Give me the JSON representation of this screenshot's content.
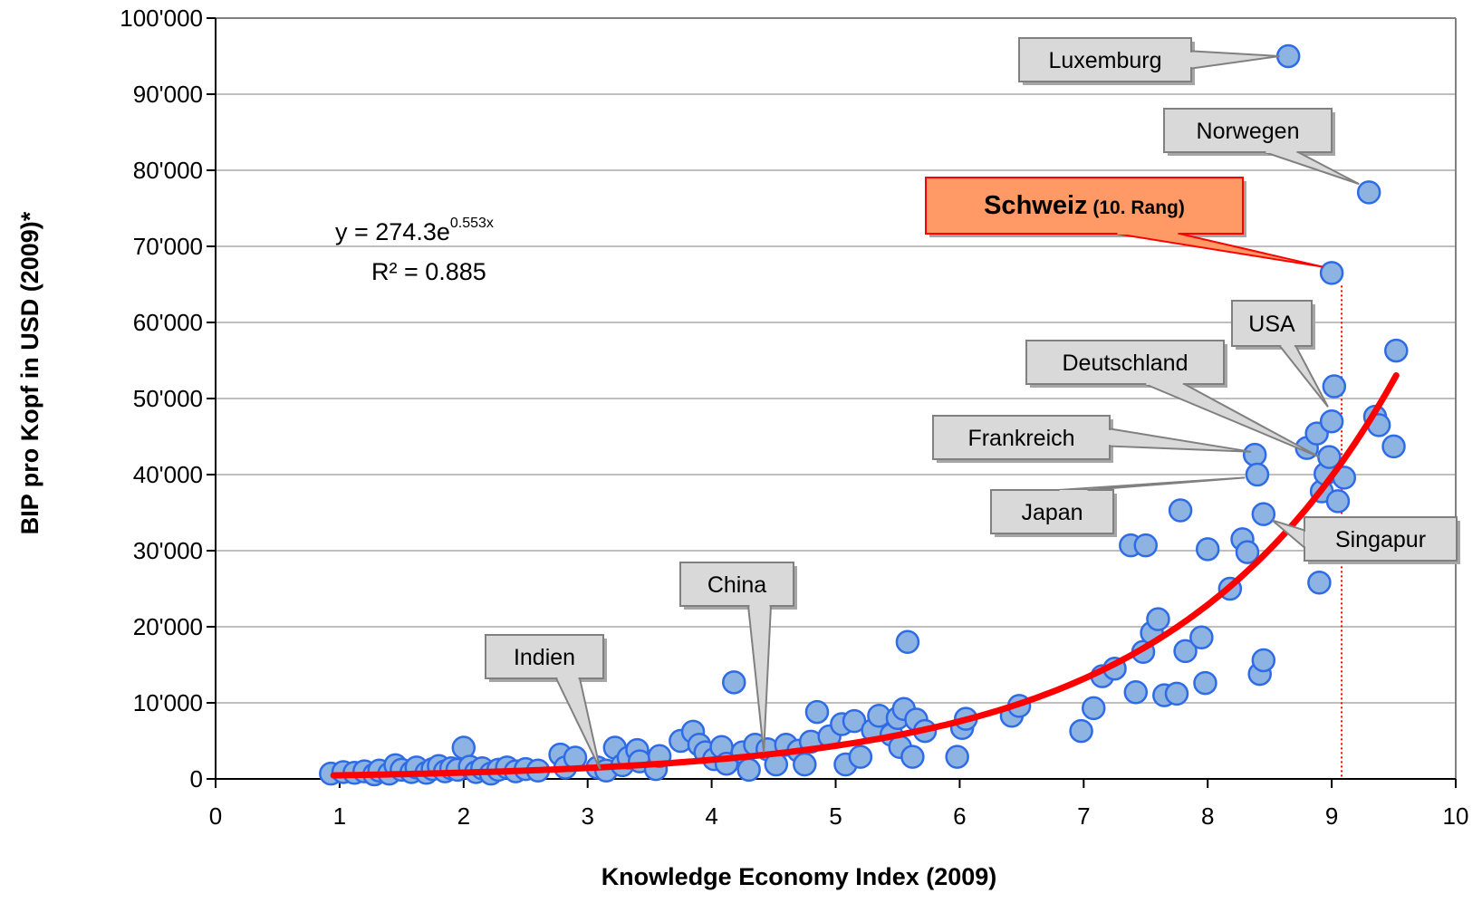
{
  "chart_data": {
    "type": "scatter",
    "xlabel": "Knowledge Economy Index (2009)",
    "ylabel": "BIP pro Kopf in USD (2009)*",
    "xlim": [
      0,
      10
    ],
    "ylim": [
      0,
      100000
    ],
    "x_ticks": [
      "0",
      "1",
      "2",
      "3",
      "4",
      "5",
      "6",
      "7",
      "8",
      "9",
      "10"
    ],
    "y_ticks": [
      "0",
      "10'000",
      "20'000",
      "30'000",
      "40'000",
      "50'000",
      "60'000",
      "70'000",
      "80'000",
      "90'000",
      "100'000"
    ],
    "grid": "horizontal",
    "colors": {
      "points": "#8DB3E2",
      "point_edge": "#2E6BE6",
      "trend": "#FF0000",
      "highlight": "#FF9966",
      "callout": "#D9D9D9"
    },
    "trendline": {
      "type": "exponential",
      "a": 274.3,
      "b": 0.553,
      "x_range": [
        0.95,
        9.52
      ],
      "label_prefix": "y = 274.3e",
      "label_exp": "0.553x",
      "r2_label": "R² = 0.885"
    },
    "reference_line_x": 9.08,
    "points": [
      {
        "x": 0.93,
        "y": 700
      },
      {
        "x": 1.03,
        "y": 900
      },
      {
        "x": 1.12,
        "y": 800
      },
      {
        "x": 1.2,
        "y": 1000
      },
      {
        "x": 1.28,
        "y": 600
      },
      {
        "x": 1.32,
        "y": 1100
      },
      {
        "x": 1.4,
        "y": 700
      },
      {
        "x": 1.45,
        "y": 1800
      },
      {
        "x": 1.5,
        "y": 1200
      },
      {
        "x": 1.58,
        "y": 900
      },
      {
        "x": 1.62,
        "y": 1500
      },
      {
        "x": 1.7,
        "y": 800
      },
      {
        "x": 1.75,
        "y": 1300
      },
      {
        "x": 1.8,
        "y": 1700
      },
      {
        "x": 1.85,
        "y": 1000
      },
      {
        "x": 1.9,
        "y": 1400
      },
      {
        "x": 1.95,
        "y": 1200
      },
      {
        "x": 2.0,
        "y": 4100
      },
      {
        "x": 2.05,
        "y": 1600
      },
      {
        "x": 2.1,
        "y": 900
      },
      {
        "x": 2.15,
        "y": 1400
      },
      {
        "x": 2.22,
        "y": 700
      },
      {
        "x": 2.28,
        "y": 1200
      },
      {
        "x": 2.35,
        "y": 1500
      },
      {
        "x": 2.42,
        "y": 1000
      },
      {
        "x": 2.5,
        "y": 1300
      },
      {
        "x": 2.6,
        "y": 1100
      },
      {
        "x": 2.78,
        "y": 3200
      },
      {
        "x": 2.82,
        "y": 1500
      },
      {
        "x": 2.9,
        "y": 2800
      },
      {
        "x": 3.08,
        "y": 1500
      },
      {
        "x": 3.15,
        "y": 1100
      },
      {
        "x": 3.22,
        "y": 4100
      },
      {
        "x": 3.28,
        "y": 1800
      },
      {
        "x": 3.33,
        "y": 2800
      },
      {
        "x": 3.4,
        "y": 3800
      },
      {
        "x": 3.42,
        "y": 2300
      },
      {
        "x": 3.55,
        "y": 1300
      },
      {
        "x": 3.58,
        "y": 3000
      },
      {
        "x": 3.75,
        "y": 5000
      },
      {
        "x": 3.85,
        "y": 6200
      },
      {
        "x": 3.9,
        "y": 4500
      },
      {
        "x": 3.95,
        "y": 3500
      },
      {
        "x": 4.02,
        "y": 2600
      },
      {
        "x": 4.08,
        "y": 4200
      },
      {
        "x": 4.12,
        "y": 2000
      },
      {
        "x": 4.18,
        "y": 12700
      },
      {
        "x": 4.25,
        "y": 3500
      },
      {
        "x": 4.3,
        "y": 1200
      },
      {
        "x": 4.35,
        "y": 4500
      },
      {
        "x": 4.45,
        "y": 3900
      },
      {
        "x": 4.52,
        "y": 1900
      },
      {
        "x": 4.6,
        "y": 4500
      },
      {
        "x": 4.7,
        "y": 3700
      },
      {
        "x": 4.75,
        "y": 1900
      },
      {
        "x": 4.8,
        "y": 4900
      },
      {
        "x": 4.85,
        "y": 8800
      },
      {
        "x": 4.95,
        "y": 5600
      },
      {
        "x": 5.05,
        "y": 7200
      },
      {
        "x": 5.08,
        "y": 1900
      },
      {
        "x": 5.15,
        "y": 7600
      },
      {
        "x": 5.2,
        "y": 2900
      },
      {
        "x": 5.3,
        "y": 6400
      },
      {
        "x": 5.35,
        "y": 8300
      },
      {
        "x": 5.45,
        "y": 5800
      },
      {
        "x": 5.5,
        "y": 8000
      },
      {
        "x": 5.52,
        "y": 4200
      },
      {
        "x": 5.55,
        "y": 9200
      },
      {
        "x": 5.58,
        "y": 18000
      },
      {
        "x": 5.62,
        "y": 2900
      },
      {
        "x": 5.65,
        "y": 7800
      },
      {
        "x": 5.72,
        "y": 6300
      },
      {
        "x": 5.98,
        "y": 2900
      },
      {
        "x": 6.02,
        "y": 6700
      },
      {
        "x": 6.05,
        "y": 7900
      },
      {
        "x": 6.42,
        "y": 8300
      },
      {
        "x": 6.48,
        "y": 9600
      },
      {
        "x": 6.98,
        "y": 6300
      },
      {
        "x": 7.08,
        "y": 9300
      },
      {
        "x": 7.15,
        "y": 13500
      },
      {
        "x": 7.25,
        "y": 14500
      },
      {
        "x": 7.38,
        "y": 30700
      },
      {
        "x": 7.42,
        "y": 11400
      },
      {
        "x": 7.48,
        "y": 16700
      },
      {
        "x": 7.5,
        "y": 30700
      },
      {
        "x": 7.55,
        "y": 19200
      },
      {
        "x": 7.6,
        "y": 21000
      },
      {
        "x": 7.65,
        "y": 11000
      },
      {
        "x": 7.75,
        "y": 11200
      },
      {
        "x": 7.78,
        "y": 35300
      },
      {
        "x": 7.82,
        "y": 16800
      },
      {
        "x": 7.95,
        "y": 18600
      },
      {
        "x": 7.98,
        "y": 12600
      },
      {
        "x": 8.0,
        "y": 30200
      },
      {
        "x": 8.18,
        "y": 25000
      },
      {
        "x": 8.28,
        "y": 31500
      },
      {
        "x": 8.32,
        "y": 29800
      },
      {
        "x": 8.38,
        "y": 42600
      },
      {
        "x": 8.4,
        "y": 40000
      },
      {
        "x": 8.42,
        "y": 13800
      },
      {
        "x": 8.45,
        "y": 15600
      },
      {
        "x": 8.45,
        "y": 34800
      },
      {
        "x": 8.65,
        "y": 95000
      },
      {
        "x": 8.8,
        "y": 43500
      },
      {
        "x": 8.88,
        "y": 45400
      },
      {
        "x": 8.9,
        "y": 25800
      },
      {
        "x": 8.92,
        "y": 37800
      },
      {
        "x": 8.95,
        "y": 40100
      },
      {
        "x": 8.98,
        "y": 42300
      },
      {
        "x": 9.0,
        "y": 66500
      },
      {
        "x": 9.0,
        "y": 47000
      },
      {
        "x": 9.02,
        "y": 51600
      },
      {
        "x": 9.05,
        "y": 36500
      },
      {
        "x": 9.1,
        "y": 39600
      },
      {
        "x": 9.3,
        "y": 77100
      },
      {
        "x": 9.35,
        "y": 47600
      },
      {
        "x": 9.38,
        "y": 46500
      },
      {
        "x": 9.5,
        "y": 43700
      },
      {
        "x": 9.52,
        "y": 56300
      }
    ],
    "annotations": [
      {
        "label": "Luxemburg",
        "highlight": false,
        "target": [
          8.58,
          95000
        ]
      },
      {
        "label": "Norwegen",
        "highlight": false,
        "target": [
          9.22,
          78200
        ]
      },
      {
        "label": "Schweiz",
        "label_small": " (10. Rang)",
        "highlight": true,
        "target": [
          8.93,
          67300
        ]
      },
      {
        "label": "USA",
        "highlight": false,
        "target": [
          8.97,
          48900
        ]
      },
      {
        "label": "Deutschland",
        "highlight": false,
        "target": [
          8.9,
          42300
        ]
      },
      {
        "label": "Frankreich",
        "highlight": false,
        "target": [
          8.35,
          43000
        ]
      },
      {
        "label": "Japan",
        "highlight": false,
        "target": [
          8.3,
          39600
        ]
      },
      {
        "label": "Singapur",
        "highlight": false,
        "target": [
          8.52,
          34000
        ]
      },
      {
        "label": "China",
        "highlight": false,
        "target": [
          4.42,
          3500
        ]
      },
      {
        "label": "Indien",
        "highlight": false,
        "target": [
          3.1,
          1300
        ]
      }
    ]
  }
}
